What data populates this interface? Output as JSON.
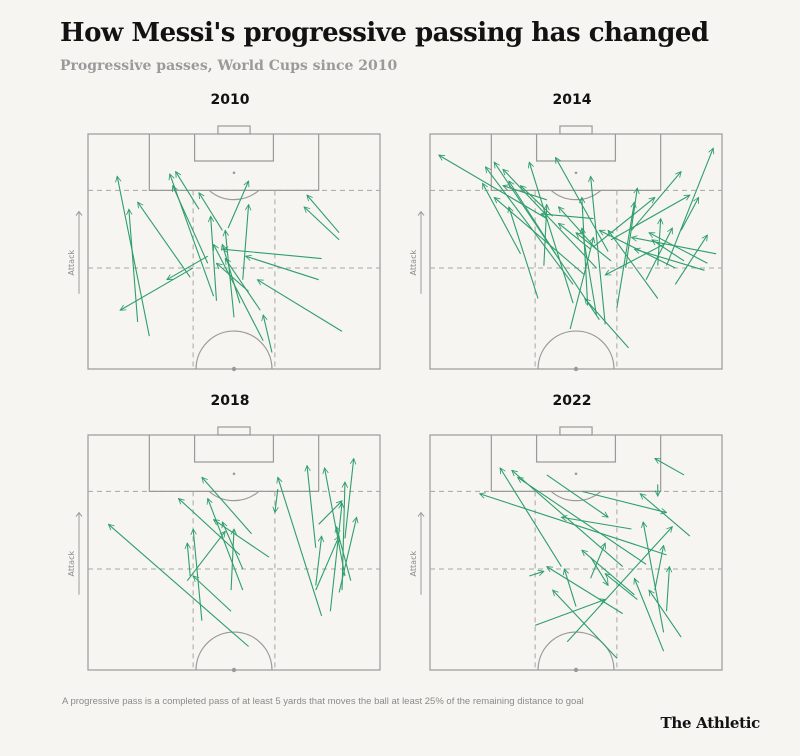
{
  "title": "How Messi's progressive passing has changed",
  "subtitle": "Progressive passes, World Cups since 2010",
  "footnote": "A progressive pass is a completed pass of at least 5 yards that moves the ball at least 25% of the remaining distance to goal",
  "logo": "The Athletic",
  "axis_label": "Attack",
  "colors": {
    "pass": "#2f9e6b",
    "line": "#9a9a9a",
    "dash": "#a6a6a6",
    "background": "#f6f5f1"
  },
  "chart_data": [
    {
      "type": "pass-map",
      "year": "2010",
      "passes": [
        [
          0.21,
          0.86,
          0.1,
          0.18
        ],
        [
          0.17,
          0.8,
          0.14,
          0.32
        ],
        [
          0.35,
          0.61,
          0.17,
          0.29
        ],
        [
          0.38,
          0.32,
          0.3,
          0.16
        ],
        [
          0.41,
          0.55,
          0.29,
          0.22
        ],
        [
          0.46,
          0.41,
          0.38,
          0.25
        ],
        [
          0.44,
          0.71,
          0.42,
          0.35
        ],
        [
          0.5,
          0.78,
          0.47,
          0.41
        ],
        [
          0.52,
          0.72,
          0.46,
          0.47
        ],
        [
          0.55,
          0.67,
          0.44,
          0.55
        ],
        [
          0.41,
          0.52,
          0.27,
          0.62
        ],
        [
          0.36,
          0.57,
          0.11,
          0.75
        ],
        [
          0.86,
          0.42,
          0.75,
          0.26
        ],
        [
          0.86,
          0.45,
          0.74,
          0.31
        ],
        [
          0.8,
          0.53,
          0.46,
          0.49
        ],
        [
          0.79,
          0.62,
          0.54,
          0.52
        ],
        [
          0.87,
          0.84,
          0.58,
          0.62
        ],
        [
          0.63,
          0.93,
          0.6,
          0.77
        ],
        [
          0.6,
          0.88,
          0.43,
          0.47
        ],
        [
          0.59,
          0.75,
          0.47,
          0.53
        ],
        [
          0.53,
          0.62,
          0.55,
          0.3
        ],
        [
          0.43,
          0.69,
          0.28,
          0.17
        ],
        [
          0.48,
          0.4,
          0.55,
          0.2
        ]
      ]
    },
    {
      "type": "pass-map",
      "year": "2014",
      "passes": [
        [
          0.4,
          0.36,
          0.03,
          0.09
        ],
        [
          0.49,
          0.64,
          0.19,
          0.14
        ],
        [
          0.57,
          0.57,
          0.25,
          0.15
        ],
        [
          0.53,
          0.6,
          0.22,
          0.27
        ],
        [
          0.4,
          0.28,
          0.25,
          0.22
        ],
        [
          0.42,
          0.35,
          0.31,
          0.22
        ],
        [
          0.43,
          0.51,
          0.27,
          0.2
        ],
        [
          0.37,
          0.7,
          0.27,
          0.31
        ],
        [
          0.39,
          0.56,
          0.4,
          0.3
        ],
        [
          0.56,
          0.36,
          0.38,
          0.34
        ],
        [
          0.55,
          0.49,
          0.44,
          0.38
        ],
        [
          0.62,
          0.54,
          0.5,
          0.42
        ],
        [
          0.61,
          0.5,
          0.43,
          0.1
        ],
        [
          0.57,
          0.77,
          0.52,
          0.4
        ],
        [
          0.48,
          0.83,
          0.56,
          0.44
        ],
        [
          0.78,
          0.7,
          0.61,
          0.41
        ],
        [
          0.64,
          0.74,
          0.7,
          0.29
        ],
        [
          0.84,
          0.57,
          0.58,
          0.41
        ],
        [
          0.74,
          0.62,
          0.83,
          0.4
        ],
        [
          0.84,
          0.64,
          0.95,
          0.43
        ],
        [
          0.78,
          0.56,
          0.79,
          0.36
        ],
        [
          0.62,
          0.45,
          0.89,
          0.26
        ],
        [
          0.56,
          0.48,
          0.77,
          0.27
        ],
        [
          0.69,
          0.41,
          0.86,
          0.16
        ],
        [
          0.98,
          0.51,
          0.69,
          0.44
        ],
        [
          0.95,
          0.55,
          0.75,
          0.42
        ],
        [
          0.87,
          0.54,
          0.76,
          0.45
        ],
        [
          0.94,
          0.58,
          0.7,
          0.49
        ],
        [
          0.54,
          0.73,
          0.52,
          0.27
        ],
        [
          0.49,
          0.72,
          0.34,
          0.12
        ],
        [
          0.6,
          0.81,
          0.55,
          0.18
        ],
        [
          0.67,
          0.57,
          0.71,
          0.23
        ],
        [
          0.58,
          0.79,
          0.22,
          0.12
        ],
        [
          0.81,
          0.56,
          0.97,
          0.06
        ],
        [
          0.8,
          0.47,
          0.6,
          0.6
        ],
        [
          0.68,
          0.91,
          0.53,
          0.7
        ],
        [
          0.57,
          0.49,
          0.44,
          0.31
        ],
        [
          0.31,
          0.51,
          0.18,
          0.21
        ],
        [
          0.86,
          0.41,
          0.92,
          0.27
        ]
      ]
    },
    {
      "type": "pass-map",
      "year": "2018",
      "passes": [
        [
          0.55,
          0.9,
          0.07,
          0.38
        ],
        [
          0.49,
          0.75,
          0.36,
          0.6
        ],
        [
          0.39,
          0.79,
          0.36,
          0.4
        ],
        [
          0.35,
          0.6,
          0.34,
          0.46
        ],
        [
          0.34,
          0.62,
          0.47,
          0.41
        ],
        [
          0.49,
          0.66,
          0.5,
          0.4
        ],
        [
          0.53,
          0.57,
          0.46,
          0.37
        ],
        [
          0.62,
          0.52,
          0.43,
          0.36
        ],
        [
          0.56,
          0.42,
          0.39,
          0.18
        ],
        [
          0.52,
          0.51,
          0.31,
          0.27
        ],
        [
          0.53,
          0.66,
          0.41,
          0.27
        ],
        [
          0.8,
          0.77,
          0.65,
          0.18
        ],
        [
          0.78,
          0.48,
          0.75,
          0.13
        ],
        [
          0.88,
          0.6,
          0.81,
          0.14
        ],
        [
          0.78,
          0.64,
          0.8,
          0.43
        ],
        [
          0.83,
          0.75,
          0.87,
          0.29
        ],
        [
          0.87,
          0.66,
          0.88,
          0.2
        ],
        [
          0.88,
          0.44,
          0.91,
          0.1
        ],
        [
          0.9,
          0.62,
          0.85,
          0.39
        ],
        [
          0.78,
          0.66,
          0.86,
          0.43
        ],
        [
          0.86,
          0.67,
          0.92,
          0.35
        ],
        [
          0.65,
          0.23,
          0.64,
          0.33
        ],
        [
          0.79,
          0.38,
          0.87,
          0.28
        ]
      ]
    },
    {
      "type": "pass-map",
      "year": "2022",
      "passes": [
        [
          0.81,
          0.51,
          0.17,
          0.25
        ],
        [
          0.36,
          0.81,
          0.6,
          0.7
        ],
        [
          0.55,
          0.61,
          0.6,
          0.46
        ],
        [
          0.45,
          0.56,
          0.24,
          0.14
        ],
        [
          0.66,
          0.56,
          0.28,
          0.15
        ],
        [
          0.74,
          0.55,
          0.3,
          0.18
        ],
        [
          0.69,
          0.4,
          0.45,
          0.35
        ],
        [
          0.55,
          0.52,
          0.61,
          0.64
        ],
        [
          0.71,
          0.7,
          0.6,
          0.59
        ],
        [
          0.66,
          0.76,
          0.4,
          0.56
        ],
        [
          0.64,
          0.95,
          0.42,
          0.66
        ],
        [
          0.89,
          0.43,
          0.72,
          0.25
        ],
        [
          0.5,
          0.73,
          0.46,
          0.57
        ],
        [
          0.47,
          0.88,
          0.83,
          0.39
        ],
        [
          0.77,
          0.66,
          0.8,
          0.47
        ],
        [
          0.86,
          0.86,
          0.75,
          0.66
        ],
        [
          0.81,
          0.75,
          0.82,
          0.56
        ],
        [
          0.8,
          0.92,
          0.7,
          0.61
        ],
        [
          0.7,
          0.68,
          0.52,
          0.49
        ],
        [
          0.34,
          0.6,
          0.39,
          0.58
        ],
        [
          0.87,
          0.17,
          0.77,
          0.1
        ],
        [
          0.78,
          0.21,
          0.78,
          0.26
        ],
        [
          0.4,
          0.17,
          0.61,
          0.35
        ],
        [
          0.8,
          0.84,
          0.73,
          0.37
        ],
        [
          0.52,
          0.24,
          0.81,
          0.33
        ]
      ]
    }
  ]
}
